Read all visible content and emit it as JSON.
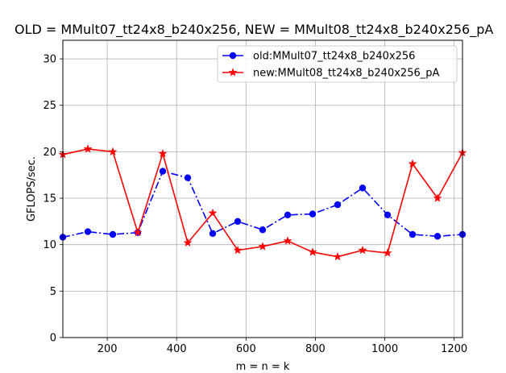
{
  "chart_data": {
    "type": "line",
    "title": "OLD = MMult07_tt24x8_b240x256, NEW = MMult08_tt24x8_b240x256_pA",
    "xlabel": "m = n = k",
    "ylabel": "GFLOPS/sec.",
    "xlim": [
      72,
      1224
    ],
    "ylim": [
      0,
      32
    ],
    "xticks": [
      200,
      400,
      600,
      800,
      1000,
      1200
    ],
    "yticks": [
      0,
      5,
      10,
      15,
      20,
      25,
      30
    ],
    "grid": true,
    "legend_position": "upper-right",
    "x": [
      72,
      144,
      216,
      288,
      360,
      432,
      504,
      576,
      648,
      720,
      792,
      864,
      936,
      1008,
      1080,
      1152,
      1224
    ],
    "series": [
      {
        "name": "old:MMult07_tt24x8_b240x256",
        "color": "#0000ff",
        "line_style": "dashdot",
        "marker": "circle",
        "values": [
          10.8,
          11.4,
          11.1,
          11.3,
          17.9,
          17.2,
          11.2,
          12.5,
          11.6,
          13.2,
          13.3,
          14.3,
          16.1,
          13.2,
          11.1,
          10.9,
          11.1
        ]
      },
      {
        "name": "new:MMult08_tt24x8_b240x256_pA",
        "color": "#ff0000",
        "line_style": "solid",
        "marker": "star",
        "values": [
          19.7,
          20.3,
          20.0,
          11.3,
          19.8,
          10.2,
          13.4,
          9.4,
          9.8,
          10.4,
          9.2,
          8.7,
          9.4,
          9.1,
          18.7,
          15.0,
          19.9
        ]
      }
    ]
  }
}
